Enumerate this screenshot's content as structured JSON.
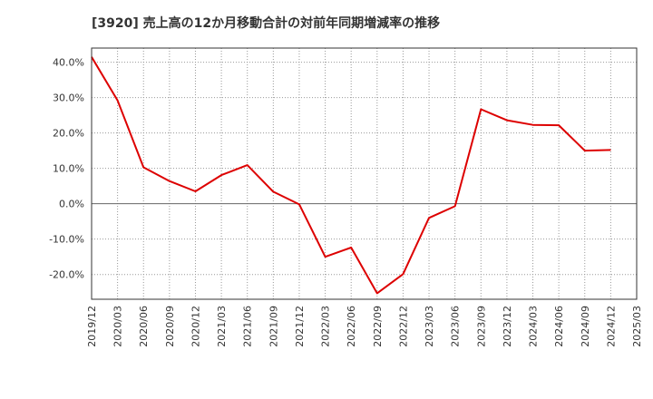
{
  "chart_data": {
    "type": "line",
    "title": "[3920]  売上高の12か月移動合計の対前年同期増減率の推移",
    "xlabel": "",
    "ylabel": "",
    "ylim": [
      -27,
      44
    ],
    "y_ticks": [
      40,
      30,
      20,
      10,
      0,
      -10,
      -20
    ],
    "y_tick_labels": [
      "40.0%",
      "30.0%",
      "20.0%",
      "10.0%",
      "0.0%",
      "-10.0%",
      "-20.0%"
    ],
    "x_tick_labels": [
      "2019/12",
      "2020/03",
      "2020/06",
      "2020/09",
      "2020/12",
      "2021/03",
      "2021/06",
      "2021/09",
      "2021/12",
      "2022/03",
      "2022/06",
      "2022/09",
      "2022/12",
      "2023/03",
      "2023/06",
      "2023/09",
      "2023/12",
      "2024/03",
      "2024/06",
      "2024/09",
      "2024/12",
      "2025/03"
    ],
    "grid": true,
    "series": [
      {
        "name": "対前年同期増減率",
        "color": "#dd0000",
        "values": [
          41.5,
          29.2,
          10.3,
          6.4,
          3.5,
          8.1,
          10.9,
          3.4,
          -0.2,
          -15.0,
          -12.4,
          -25.3,
          -19.9,
          -4.0,
          -0.7,
          26.7,
          23.6,
          22.3,
          22.2,
          15.0,
          15.2
        ]
      }
    ]
  }
}
